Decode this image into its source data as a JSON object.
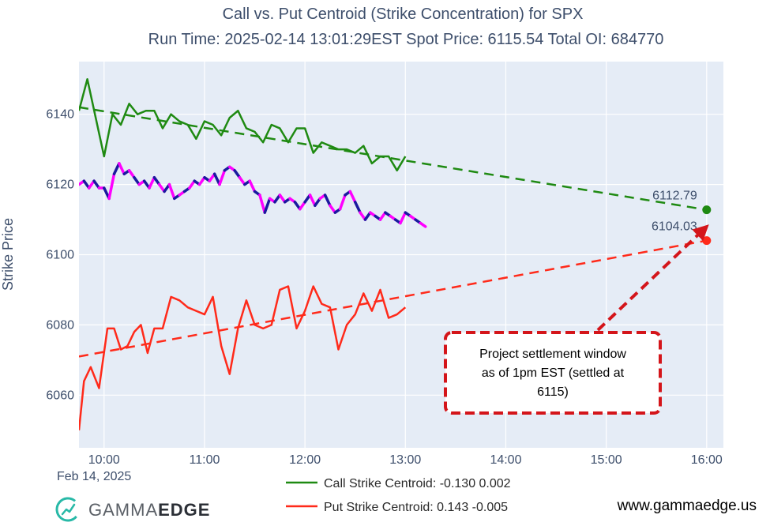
{
  "chart_data": {
    "type": "line",
    "title": "Call vs. Put Centroid (Strike Concentration) for SPX",
    "subtitle": "Run Time: 2025-02-14 13:01:29EST Spot Price: 6115.54 Total OI: 684770",
    "ylabel": "Strike Price",
    "x_date_label": "Feb 14, 2025",
    "xlim": [
      "09:45",
      "16:10"
    ],
    "ylim": [
      6045,
      6155
    ],
    "x_ticks": [
      "10:00",
      "11:00",
      "12:00",
      "13:00",
      "14:00",
      "15:00",
      "16:00"
    ],
    "y_ticks": [
      6060,
      6080,
      6100,
      6120,
      6140
    ],
    "grid": true,
    "legend_position": "bottom-center",
    "series": [
      {
        "name": "Call Strike Centroid: -0.130 0.002",
        "color": "#1f8a12",
        "style": "solid",
        "points": [
          [
            "09:45",
            6141
          ],
          [
            "09:50",
            6150
          ],
          [
            "09:55",
            6139
          ],
          [
            "10:00",
            6128
          ],
          [
            "10:05",
            6140
          ],
          [
            "10:10",
            6137
          ],
          [
            "10:15",
            6143
          ],
          [
            "10:20",
            6140
          ],
          [
            "10:25",
            6141
          ],
          [
            "10:30",
            6141
          ],
          [
            "10:35",
            6136
          ],
          [
            "10:40",
            6140
          ],
          [
            "10:45",
            6138
          ],
          [
            "10:50",
            6137
          ],
          [
            "10:55",
            6133
          ],
          [
            "11:00",
            6138
          ],
          [
            "11:05",
            6137
          ],
          [
            "11:10",
            6134
          ],
          [
            "11:15",
            6139
          ],
          [
            "11:20",
            6141
          ],
          [
            "11:25",
            6136
          ],
          [
            "11:30",
            6135
          ],
          [
            "11:35",
            6132
          ],
          [
            "11:40",
            6137
          ],
          [
            "11:45",
            6136
          ],
          [
            "11:50",
            6132
          ],
          [
            "11:55",
            6136
          ],
          [
            "12:00",
            6136
          ],
          [
            "12:05",
            6129
          ],
          [
            "12:10",
            6132
          ],
          [
            "12:15",
            6131
          ],
          [
            "12:20",
            6130
          ],
          [
            "12:25",
            6130
          ],
          [
            "12:30",
            6129
          ],
          [
            "12:35",
            6131
          ],
          [
            "12:40",
            6126
          ],
          [
            "12:45",
            6128
          ],
          [
            "12:50",
            6128
          ],
          [
            "12:55",
            6124
          ],
          [
            "13:00",
            6128
          ]
        ]
      },
      {
        "name": "Put Strike Centroid: 0.143 -0.005",
        "color": "#ff2a1a",
        "style": "solid",
        "points": [
          [
            "09:45",
            6050
          ],
          [
            "09:48",
            6064
          ],
          [
            "09:52",
            6068
          ],
          [
            "09:57",
            6062
          ],
          [
            "10:02",
            6079
          ],
          [
            "10:06",
            6079
          ],
          [
            "10:10",
            6073
          ],
          [
            "10:14",
            6074
          ],
          [
            "10:18",
            6078
          ],
          [
            "10:22",
            6080
          ],
          [
            "10:26",
            6072
          ],
          [
            "10:30",
            6079
          ],
          [
            "10:35",
            6079
          ],
          [
            "10:40",
            6088
          ],
          [
            "10:45",
            6087
          ],
          [
            "10:50",
            6085
          ],
          [
            "10:55",
            6084
          ],
          [
            "11:00",
            6083
          ],
          [
            "11:05",
            6088
          ],
          [
            "11:10",
            6074
          ],
          [
            "11:15",
            6066
          ],
          [
            "11:20",
            6079
          ],
          [
            "11:25",
            6087
          ],
          [
            "11:30",
            6080
          ],
          [
            "11:35",
            6079
          ],
          [
            "11:40",
            6080
          ],
          [
            "11:45",
            6090
          ],
          [
            "11:50",
            6091
          ],
          [
            "11:55",
            6079
          ],
          [
            "12:00",
            6084
          ],
          [
            "12:05",
            6091
          ],
          [
            "12:10",
            6086
          ],
          [
            "12:15",
            6085
          ],
          [
            "12:20",
            6073
          ],
          [
            "12:25",
            6080
          ],
          [
            "12:30",
            6083
          ],
          [
            "12:35",
            6089
          ],
          [
            "12:40",
            6084
          ],
          [
            "12:45",
            6090
          ],
          [
            "12:50",
            6082
          ],
          [
            "12:55",
            6083
          ],
          [
            "13:00",
            6085
          ]
        ]
      },
      {
        "name": "",
        "color": "#1f8a12",
        "style": "dashed",
        "points": [
          [
            "09:45",
            6142
          ],
          [
            "16:00",
            6112.79
          ]
        ]
      },
      {
        "name": "",
        "color": "#ff2a1a",
        "style": "dashed",
        "points": [
          [
            "09:45",
            6071
          ],
          [
            "16:00",
            6104.03
          ]
        ]
      },
      {
        "name": "",
        "color": "#ff00ff",
        "alt_color": "#1a1a9e",
        "style": "solid-alternating",
        "points": [
          [
            "09:45",
            6120
          ],
          [
            "09:48",
            6121
          ],
          [
            "09:51",
            6119
          ],
          [
            "09:54",
            6121
          ],
          [
            "09:57",
            6119
          ],
          [
            "10:00",
            6119
          ],
          [
            "10:03",
            6116
          ],
          [
            "10:06",
            6123
          ],
          [
            "10:09",
            6126
          ],
          [
            "10:12",
            6123
          ],
          [
            "10:15",
            6124
          ],
          [
            "10:18",
            6122
          ],
          [
            "10:21",
            6120
          ],
          [
            "10:24",
            6121
          ],
          [
            "10:27",
            6119
          ],
          [
            "10:30",
            6122
          ],
          [
            "10:33",
            6120
          ],
          [
            "10:36",
            6118
          ],
          [
            "10:39",
            6120
          ],
          [
            "10:42",
            6116
          ],
          [
            "10:45",
            6117
          ],
          [
            "10:48",
            6118
          ],
          [
            "10:51",
            6119
          ],
          [
            "10:54",
            6121
          ],
          [
            "10:57",
            6120
          ],
          [
            "11:00",
            6122
          ],
          [
            "11:03",
            6121
          ],
          [
            "11:06",
            6123
          ],
          [
            "11:09",
            6120
          ],
          [
            "11:12",
            6124
          ],
          [
            "11:15",
            6125
          ],
          [
            "11:18",
            6124
          ],
          [
            "11:21",
            6122
          ],
          [
            "11:24",
            6120
          ],
          [
            "11:27",
            6121
          ],
          [
            "11:30",
            6118
          ],
          [
            "11:33",
            6117
          ],
          [
            "11:36",
            6112
          ],
          [
            "11:39",
            6116
          ],
          [
            "11:42",
            6115
          ],
          [
            "11:45",
            6117
          ],
          [
            "11:48",
            6115
          ],
          [
            "11:51",
            6116
          ],
          [
            "11:54",
            6115
          ],
          [
            "11:57",
            6113
          ],
          [
            "12:00",
            6115
          ],
          [
            "12:03",
            6117
          ],
          [
            "12:06",
            6114
          ],
          [
            "12:09",
            6116
          ],
          [
            "12:12",
            6117
          ],
          [
            "12:15",
            6114
          ],
          [
            "12:18",
            6112
          ],
          [
            "12:21",
            6113
          ],
          [
            "12:24",
            6117
          ],
          [
            "12:27",
            6118
          ],
          [
            "12:30",
            6115
          ],
          [
            "12:33",
            6112
          ],
          [
            "12:36",
            6110
          ],
          [
            "12:39",
            6112
          ],
          [
            "12:42",
            6111
          ],
          [
            "12:45",
            6110
          ],
          [
            "12:48",
            6112
          ],
          [
            "12:51",
            6111
          ],
          [
            "12:54",
            6110
          ],
          [
            "12:57",
            6109
          ],
          [
            "13:00",
            6112
          ],
          [
            "13:03",
            6111
          ],
          [
            "13:06",
            6110
          ],
          [
            "13:09",
            6109
          ],
          [
            "13:12",
            6108
          ]
        ]
      }
    ],
    "endpoints": [
      {
        "label": "6112.79",
        "x": "16:00",
        "y": 6112.79,
        "color": "#1f8a12"
      },
      {
        "label": "6104.03",
        "x": "16:00",
        "y": 6104.03,
        "color": "#ff2a1a"
      }
    ],
    "annotation": {
      "lines": [
        "Project settlement window",
        "as of 1pm EST (settled at",
        "6115)"
      ],
      "border_color": "#d4151a",
      "arrow_target": [
        "16:00",
        6108
      ]
    }
  },
  "branding": {
    "logo_gamma": "GAMMA",
    "logo_edge": "EDGE",
    "website": "www.gammaedge.us"
  }
}
